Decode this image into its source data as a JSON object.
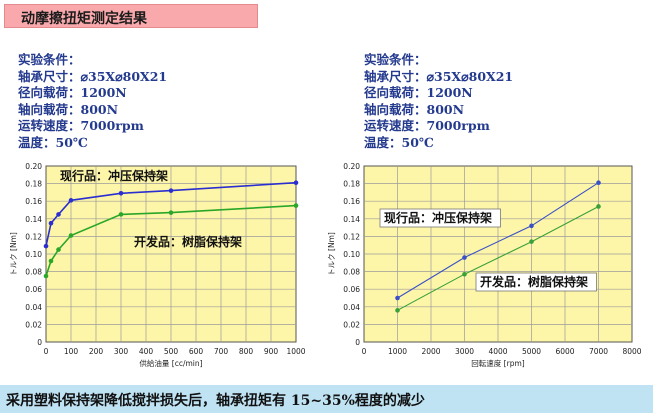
{
  "title": "动摩擦扭矩测定结果",
  "conditions": [
    {
      "heading": "实验条件：",
      "lines": [
        "轴承尺寸：⌀35X⌀80X21",
        "径向载荷：1200N",
        "轴向载荷：800N",
        "运转速度：7000rpm",
        "温度：50℃"
      ]
    },
    {
      "heading": "实验条件：",
      "lines": [
        "轴承尺寸：⌀35X⌀80X21",
        "径向载荷：1200N",
        "轴向载荷：800N",
        "运转速度：7000rpm",
        "温度：50℃"
      ]
    }
  ],
  "chart_data": [
    {
      "type": "line",
      "xlabel": "供給油量 [cc/min]",
      "ylabel": "トルク [Nm]",
      "xlim": [
        0,
        1000
      ],
      "ylim": [
        0,
        0.2
      ],
      "xticks": [
        0,
        100,
        200,
        300,
        400,
        500,
        600,
        700,
        800,
        900,
        1000
      ],
      "yticks": [
        0,
        0.02,
        0.04,
        0.06,
        0.08,
        0.1,
        0.12,
        0.14,
        0.16,
        0.18,
        0.2
      ],
      "grid": true,
      "series": [
        {
          "name": "现行品：冲压保持架",
          "color": "#2b2fd0",
          "x": [
            0,
            20,
            50,
            100,
            300,
            500,
            1000
          ],
          "y": [
            0.109,
            0.135,
            0.145,
            0.161,
            0.169,
            0.172,
            0.181
          ]
        },
        {
          "name": "开发品：树脂保持架",
          "color": "#2aa628",
          "x": [
            0,
            20,
            50,
            100,
            300,
            500,
            1000
          ],
          "y": [
            0.075,
            0.092,
            0.105,
            0.121,
            0.145,
            0.147,
            0.155
          ]
        }
      ]
    },
    {
      "type": "line",
      "xlabel": "回転速度 [rpm]",
      "ylabel": "トルク [Nm]",
      "xlim": [
        0,
        8000
      ],
      "ylim": [
        0,
        0.2
      ],
      "xticks": [
        0,
        1000,
        2000,
        3000,
        4000,
        5000,
        6000,
        7000,
        8000
      ],
      "yticks": [
        0,
        0.02,
        0.04,
        0.06,
        0.08,
        0.1,
        0.12,
        0.14,
        0.16,
        0.18,
        0.2
      ],
      "grid": true,
      "series": [
        {
          "name": "现行品：冲压保持架",
          "color": "#3a50c8",
          "x": [
            1000,
            3000,
            5000,
            7000
          ],
          "y": [
            0.05,
            0.096,
            0.132,
            0.181
          ]
        },
        {
          "name": "开发品：树脂保持架",
          "color": "#3aa03a",
          "x": [
            1000,
            3000,
            5000,
            7000
          ],
          "y": [
            0.036,
            0.077,
            0.114,
            0.154
          ]
        }
      ]
    }
  ],
  "footer": "采用塑料保持架降低搅拌损失后，轴承扭矩有 15~35%程度的减少"
}
